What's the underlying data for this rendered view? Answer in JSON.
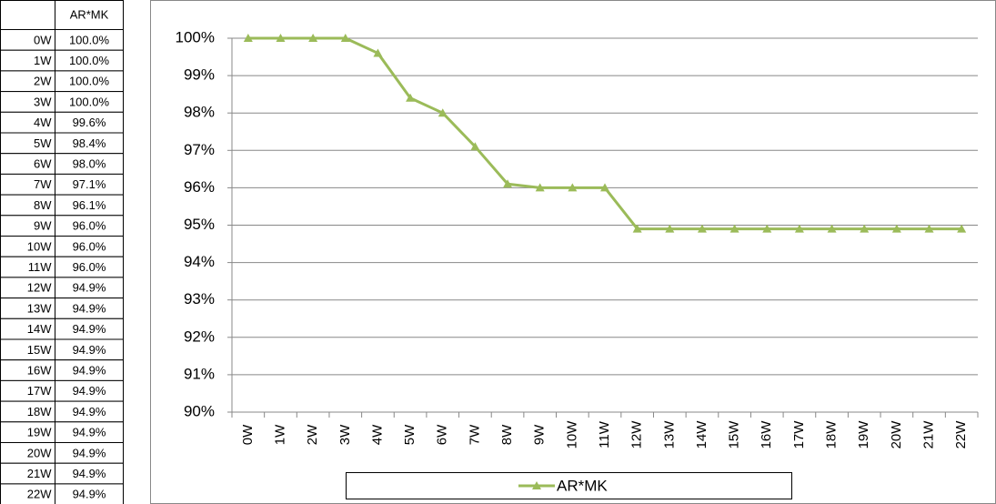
{
  "table": {
    "column_header": "AR*MK",
    "rows": [
      [
        "0W",
        "100.0%"
      ],
      [
        "1W",
        "100.0%"
      ],
      [
        "2W",
        "100.0%"
      ],
      [
        "3W",
        "100.0%"
      ],
      [
        "4W",
        "99.6%"
      ],
      [
        "5W",
        "98.4%"
      ],
      [
        "6W",
        "98.0%"
      ],
      [
        "7W",
        "97.1%"
      ],
      [
        "8W",
        "96.1%"
      ],
      [
        "9W",
        "96.0%"
      ],
      [
        "10W",
        "96.0%"
      ],
      [
        "11W",
        "96.0%"
      ],
      [
        "12W",
        "94.9%"
      ],
      [
        "13W",
        "94.9%"
      ],
      [
        "14W",
        "94.9%"
      ],
      [
        "15W",
        "94.9%"
      ],
      [
        "16W",
        "94.9%"
      ],
      [
        "17W",
        "94.9%"
      ],
      [
        "18W",
        "94.9%"
      ],
      [
        "19W",
        "94.9%"
      ],
      [
        "20W",
        "94.9%"
      ],
      [
        "21W",
        "94.9%"
      ],
      [
        "22W",
        "94.9%"
      ]
    ]
  },
  "chart_data": {
    "type": "line",
    "categories": [
      "0W",
      "1W",
      "2W",
      "3W",
      "4W",
      "5W",
      "6W",
      "7W",
      "8W",
      "9W",
      "10W",
      "11W",
      "12W",
      "13W",
      "14W",
      "15W",
      "16W",
      "17W",
      "18W",
      "19W",
      "20W",
      "21W",
      "22W"
    ],
    "series": [
      {
        "name": "AR*MK",
        "color": "#9bbb59",
        "values": [
          100,
          100,
          100,
          100,
          99.6,
          98.4,
          98.0,
          97.1,
          96.1,
          96.0,
          96.0,
          96.0,
          94.9,
          94.9,
          94.9,
          94.9,
          94.9,
          94.9,
          94.9,
          94.9,
          94.9,
          94.9,
          94.9
        ]
      }
    ],
    "ylim": [
      90,
      100
    ],
    "yticks": [
      {
        "value": 90,
        "label": "90%"
      },
      {
        "value": 91,
        "label": "91%"
      },
      {
        "value": 92,
        "label": "92%"
      },
      {
        "value": 93,
        "label": "93%"
      },
      {
        "value": 94,
        "label": "94%"
      },
      {
        "value": 95,
        "label": "95%"
      },
      {
        "value": 96,
        "label": "96%"
      },
      {
        "value": 97,
        "label": "97%"
      },
      {
        "value": 98,
        "label": "98%"
      },
      {
        "value": 99,
        "label": "99%"
      },
      {
        "value": 100,
        "label": "100%"
      }
    ],
    "grid": true,
    "legend": "bottom"
  }
}
